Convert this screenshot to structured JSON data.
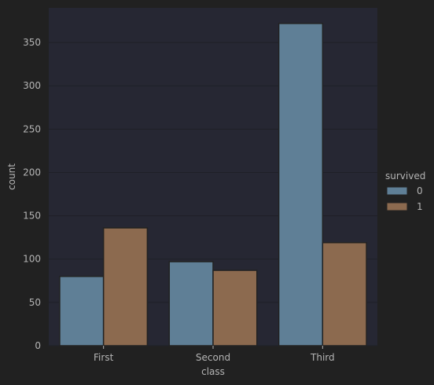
{
  "chart_data": {
    "type": "bar",
    "xlabel": "class",
    "ylabel": "count",
    "categories": [
      "First",
      "Second",
      "Third"
    ],
    "series": [
      {
        "name": "0",
        "values": [
          80,
          97,
          372
        ],
        "color": "#5f7f96"
      },
      {
        "name": "1",
        "values": [
          136,
          87,
          119
        ],
        "color": "#8c6a4f"
      }
    ],
    "ylim": [
      0,
      390
    ],
    "yticks": [
      0,
      50,
      100,
      150,
      200,
      250,
      300,
      350
    ],
    "legend": {
      "title": "survived",
      "placement": "right"
    },
    "grid": true,
    "colors": {
      "page_background": "#212121",
      "plot_background": "#262733",
      "grid": "#1f2027",
      "text": "#b4b4b4",
      "bar_edge": "#222222"
    }
  }
}
